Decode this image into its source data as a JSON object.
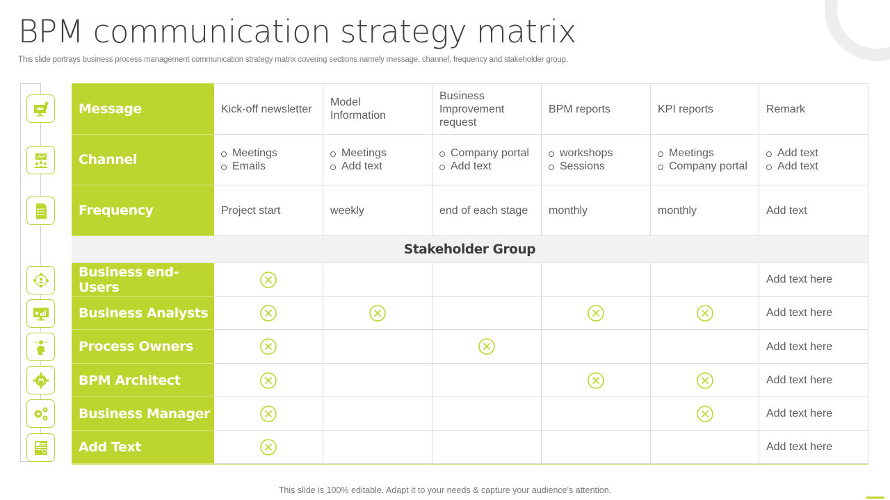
{
  "header": {
    "title": "BPM communication strategy matrix",
    "subtitle": "This slide portrays business process management communication strategy matrix covering sections namely message, channel, frequency and stakeholder group."
  },
  "colors": {
    "accent": "#bdd52f",
    "header_bar": "#f2f2f2",
    "text": "#5e5e5e"
  },
  "rail_icons": [
    "presentation-board-icon",
    "meeting-audience-icon",
    "checklist-document-icon",
    "user-network-icon",
    "analytics-monitor-icon",
    "head-gear-icon",
    "gear-settings-icon",
    "multiple-gears-icon",
    "report-document-icon"
  ],
  "matrix": {
    "rows": {
      "message": {
        "label": "Message",
        "values": [
          "Kick-off newsletter",
          "Model Information",
          "Business Improvement request",
          "BPM reports",
          "KPI reports",
          "Remark"
        ]
      },
      "channel": {
        "label": "Channel",
        "values": [
          [
            "Meetings",
            "Emails"
          ],
          [
            "Meetings",
            "Add text"
          ],
          [
            "Company portal",
            "Add text"
          ],
          [
            "workshops",
            "Sessions"
          ],
          [
            "Meetings",
            "Company portal"
          ],
          [
            "Add text",
            "Add text"
          ]
        ]
      },
      "frequency": {
        "label": "Frequency",
        "values": [
          "Project start",
          "weekly",
          "end of each stage",
          "monthly",
          "monthly",
          "Add text"
        ]
      }
    },
    "stakeholder_header": "Stakeholder Group",
    "check_icon": "circle-x-icon",
    "stakeholders": [
      {
        "label": "Business end-Users",
        "marks": [
          true,
          false,
          false,
          false,
          false
        ],
        "remark": "Add text here"
      },
      {
        "label": "Business Analysts",
        "marks": [
          true,
          true,
          false,
          true,
          true
        ],
        "remark": "Add text here"
      },
      {
        "label": "Process Owners",
        "marks": [
          true,
          false,
          true,
          false,
          false
        ],
        "remark": "Add text here"
      },
      {
        "label": "BPM Architect",
        "marks": [
          true,
          false,
          false,
          true,
          true
        ],
        "remark": "Add text here"
      },
      {
        "label": "Business Manager",
        "marks": [
          true,
          false,
          false,
          false,
          true
        ],
        "remark": "Add text here"
      },
      {
        "label": "Add Text",
        "marks": [
          true,
          false,
          false,
          false,
          false
        ],
        "remark": "Add text here"
      }
    ]
  },
  "footer": {
    "note": "This slide is 100% editable. Adapt it to your needs & capture your audience's attention."
  }
}
